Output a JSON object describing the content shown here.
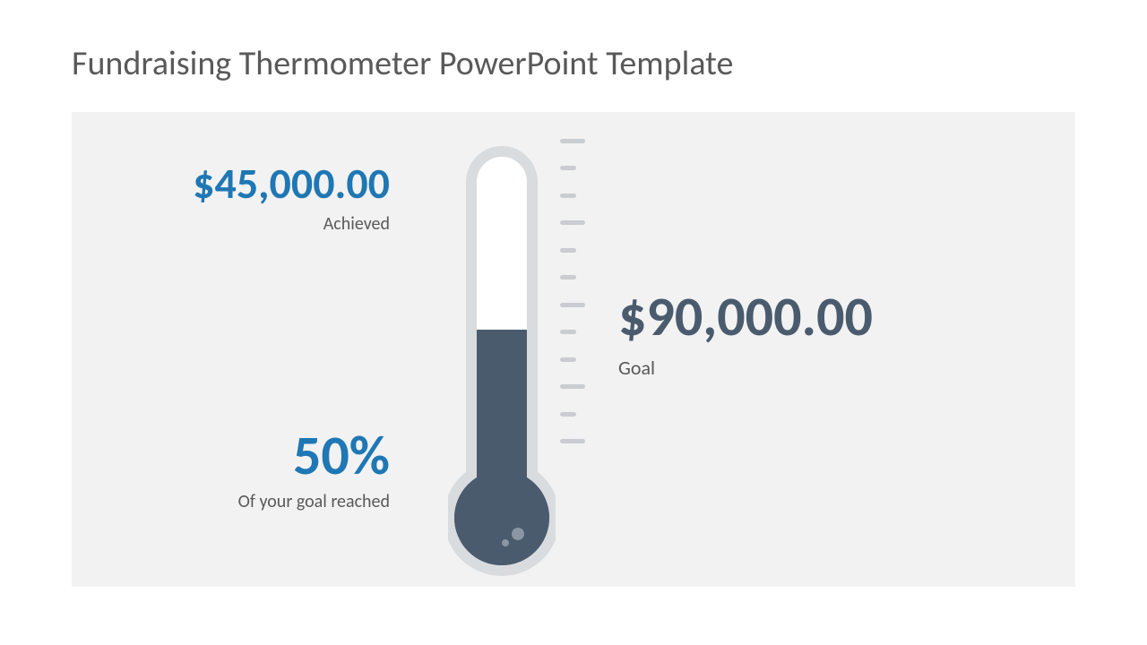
{
  "title": {
    "text": "Fundraising Thermometer PowerPoint Template",
    "color": "#595959",
    "fontsize": 38
  },
  "canvas": {
    "background": "#f2f2f2"
  },
  "achieved": {
    "value": "$45,000.00",
    "label": "Achieved",
    "value_color": "#1f77b4",
    "label_color": "#595959",
    "value_fontsize": 48,
    "label_fontsize": 20
  },
  "percent": {
    "value": "50%",
    "label": "Of your goal reached",
    "value_color": "#1f77b4",
    "label_color": "#595959",
    "value_fontsize": 62,
    "label_fontsize": 20
  },
  "goal": {
    "value": "$90,000.00",
    "label": "Goal",
    "value_color": "#4a5b6e",
    "label_color": "#595959",
    "value_fontsize": 62,
    "label_fontsize": 22
  },
  "thermometer": {
    "type": "infographic",
    "fill_percent": 50,
    "tube_outer_color": "#d9dcdf",
    "tube_inner_color": "#ffffff",
    "bulb_fill_color": "#4a5b6e",
    "mercury_color": "#4a5b6e",
    "highlight_color": "#8a96a3",
    "tube_width": 80,
    "tube_height": 370,
    "bulb_radius": 65,
    "outer_stroke": 12
  },
  "ticks": {
    "count": 12,
    "color": "#c9ccd0",
    "long_indices": [
      0,
      3,
      6,
      9,
      11
    ],
    "long_width": 28,
    "short_width": 18,
    "thickness": 5
  }
}
